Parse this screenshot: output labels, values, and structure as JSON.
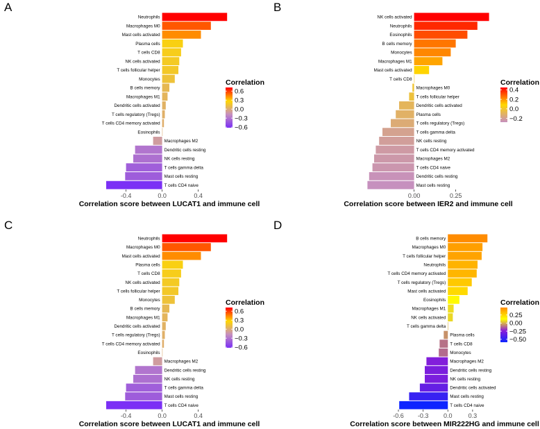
{
  "chart_data": [
    {
      "panel": "A",
      "type": "bar",
      "orientation": "horizontal",
      "xlabel": "Correlation score between LUCAT1 and immune cell",
      "xlim": [
        -0.62,
        0.78
      ],
      "xticks": [
        "-0.4",
        "0.0",
        "0.4"
      ],
      "xtick_values": [
        -0.4,
        0.0,
        0.4
      ],
      "legend": {
        "title": "Correlation",
        "ticks": [
          "0.6",
          "0.3",
          "0.0",
          "−0.3",
          "−0.6"
        ],
        "tick_values": [
          0.6,
          0.3,
          0.0,
          -0.3,
          -0.6
        ],
        "range": [
          -0.62,
          0.72
        ],
        "stops": [
          "#ff0000",
          "#ffd700",
          "#c690be",
          "#7b30f5"
        ]
      },
      "categories": [
        "Neutrophils",
        "Macrophages M0",
        "Mast cells activated",
        "Plasma cells",
        "T cells CD8",
        "NK cells activated",
        "T cells follicular helper",
        "Monocytes",
        "B cells memory",
        "Macrophages M1",
        "Dendritic cells activated",
        "T cells regulatory (Tregs)",
        "T cells CD4 memory activated",
        "Eosinophils",
        "Macrophages M2",
        "Dendritic cells resting",
        "NK cells resting",
        "T cells gamma delta",
        "Mast cells resting",
        "T cells CD4 naive"
      ],
      "values": [
        0.72,
        0.54,
        0.43,
        0.23,
        0.21,
        0.19,
        0.18,
        0.14,
        0.08,
        0.06,
        0.04,
        0.03,
        0.02,
        0.0,
        -0.1,
        -0.3,
        -0.32,
        -0.4,
        -0.41,
        -0.62
      ]
    },
    {
      "panel": "B",
      "type": "bar",
      "orientation": "horizontal",
      "xlabel": "Correlation score between IER2 and immune cell",
      "xlim": [
        -0.29,
        0.46
      ],
      "xticks": [
        "0.00",
        "0.25"
      ],
      "xtick_values": [
        0.0,
        0.25
      ],
      "legend": {
        "title": "Correlation",
        "ticks": [
          "0.4",
          "0.2",
          "0.0",
          "−0.2"
        ],
        "tick_values": [
          0.4,
          0.2,
          0.0,
          -0.2
        ],
        "range": [
          -0.28,
          0.45
        ],
        "stops": [
          "#ff0000",
          "#ffd700",
          "#c690be"
        ]
      },
      "categories": [
        "NK cells activated",
        "Neutrophils",
        "Eosinophils",
        "B cells memory",
        "Monocytes",
        "Macrophages M1",
        "Mast cells activated",
        "T cells CD8",
        "Macrophages M0",
        "T cells follicular helper",
        "Dendritic cells activated",
        "Plasma cells",
        "T cells regulatory (Tregs)",
        "T cells gamma delta",
        "NK cells resting",
        "T cells CD4 memory activated",
        "Macrophages M2",
        "T cells CD4 naive",
        "Dendritic cells resting",
        "Mast cells resting"
      ],
      "values": [
        0.45,
        0.38,
        0.32,
        0.25,
        0.22,
        0.17,
        0.09,
        0.0,
        -0.01,
        -0.03,
        -0.09,
        -0.11,
        -0.14,
        -0.19,
        -0.21,
        -0.23,
        -0.24,
        -0.25,
        -0.27,
        -0.28
      ]
    },
    {
      "panel": "C",
      "type": "bar",
      "orientation": "horizontal",
      "xlabel": "Correlation score between LUCAT1 and immune cell",
      "xlim": [
        -0.62,
        0.78
      ],
      "xticks": [
        "-0.4",
        "0.0",
        "0.4"
      ],
      "xtick_values": [
        -0.4,
        0.0,
        0.4
      ],
      "legend": {
        "title": "Correlation",
        "ticks": [
          "0.6",
          "0.3",
          "0.0",
          "−0.3",
          "−0.6"
        ],
        "tick_values": [
          0.6,
          0.3,
          0.0,
          -0.3,
          -0.6
        ],
        "range": [
          -0.62,
          0.72
        ],
        "stops": [
          "#ff0000",
          "#ffd700",
          "#c690be",
          "#7b30f5"
        ]
      },
      "categories": [
        "Neutrophils",
        "Macrophages M0",
        "Mast cells activated",
        "Plasma cells",
        "T cells CD8",
        "NK cells activated",
        "T cells follicular helper",
        "Monocytes",
        "B cells memory",
        "Macrophages M1",
        "Dendritic cells activated",
        "T cells regulatory (Tregs)",
        "T cells CD4 memory activated",
        "Eosinophils",
        "Macrophages M2",
        "Dendritic cells resting",
        "NK cells resting",
        "T cells gamma delta",
        "Mast cells resting",
        "T cells CD4 naive"
      ],
      "values": [
        0.72,
        0.54,
        0.43,
        0.23,
        0.21,
        0.19,
        0.18,
        0.14,
        0.08,
        0.06,
        0.04,
        0.03,
        0.02,
        0.0,
        -0.1,
        -0.3,
        -0.32,
        -0.4,
        -0.41,
        -0.62
      ]
    },
    {
      "panel": "D",
      "type": "bar",
      "orientation": "horizontal",
      "xlabel": "Correlation score between MIR222HG and immune cell",
      "xlim": [
        -0.6,
        0.52
      ],
      "xticks": [
        "-0.6",
        "-0.3",
        "0.0",
        "0.3"
      ],
      "xtick_values": [
        -0.6,
        -0.3,
        0.0,
        0.3
      ],
      "legend": {
        "title": "Correlation",
        "ticks": [
          "0.25",
          "0.00",
          "−0.25",
          "−0.50"
        ],
        "tick_values": [
          0.25,
          0.0,
          -0.25,
          -0.5
        ],
        "range": [
          -0.59,
          0.48
        ],
        "stops": [
          "#ff8c00",
          "#ffff00",
          "#8b1dd8",
          "#0d24ff"
        ]
      },
      "categories": [
        "B cells memory",
        "Macrophages M0",
        "T cells follicular helper",
        "Neutrophils",
        "T cells CD4 memory activated",
        "T cells regulatory (Tregs)",
        "Mast cells activated",
        "Eosinophils",
        "Macrophages M1",
        "NK cells activated",
        "T cells gamma delta",
        "Plasma cells",
        "T cells CD8",
        "Monocytes",
        "Macrophages M2",
        "Dendritic cells resting",
        "NK cells resting",
        "Dendritic cells activated",
        "Mast cells resting",
        "T cells CD4 naive"
      ],
      "values": [
        0.48,
        0.42,
        0.41,
        0.36,
        0.35,
        0.29,
        0.24,
        0.14,
        0.07,
        0.06,
        0.0,
        -0.05,
        -0.1,
        -0.11,
        -0.26,
        -0.28,
        -0.28,
        -0.34,
        -0.47,
        -0.59
      ]
    }
  ]
}
